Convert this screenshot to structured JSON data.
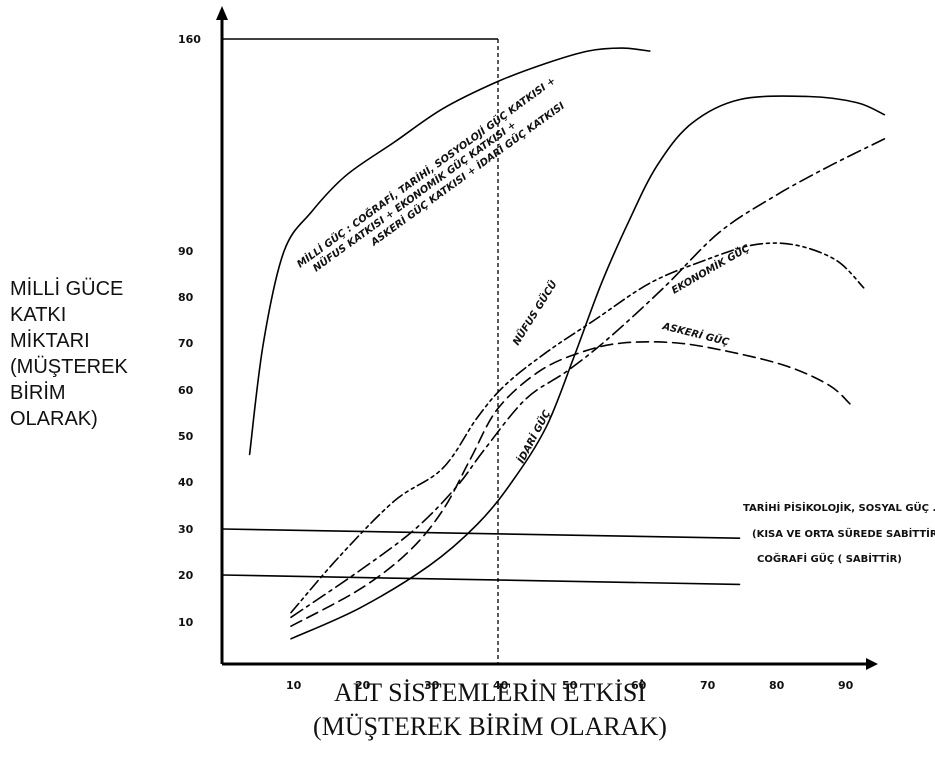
{
  "chart_data": {
    "type": "line",
    "ylabel_lines": [
      "MİLLİ GÜCE",
      "KATKI",
      "MİKTARI",
      "(MÜŞTEREK",
      "BİRİM",
      "OLARAK)"
    ],
    "xlabel_lines": [
      "ALT SİSTEMLERİN ETKİSİ",
      "(MÜŞTEREK BİRİM OLARAK)"
    ],
    "x_ticks": [
      10,
      20,
      30,
      40,
      50,
      60,
      70,
      80,
      90
    ],
    "y_ticks": [
      {
        "value": 10,
        "label": "10"
      },
      {
        "value": 20,
        "label": "20"
      },
      {
        "value": 30,
        "label": "30"
      },
      {
        "value": 40,
        "label": "40"
      },
      {
        "value": 50,
        "label": "50"
      },
      {
        "value": 60,
        "label": "60"
      },
      {
        "value": 70,
        "label": "70"
      },
      {
        "value": 80,
        "label": "80"
      },
      {
        "value": 90,
        "label": "90"
      },
      {
        "value": 160,
        "label": "160"
      }
    ],
    "reference_x": 40,
    "reference_y": 160,
    "series": [
      {
        "name": "MİLLİ GÜÇ",
        "label_lines": [
          "MİLLİ GÜÇ : COĞRAFİ, TARİHİ, SOSYOLOJİ GÜÇ KATKISI +",
          "NÜFUS KATKISI + EKONOMİK GÜÇ KATKISI +",
          "ASKERİ GÜÇ KATKISI + İDARİ GÜÇ KATKISI"
        ],
        "style": "solid",
        "points": [
          [
            4,
            46
          ],
          [
            6,
            70
          ],
          [
            9,
            90
          ],
          [
            13,
            103
          ],
          [
            18,
            115
          ],
          [
            25,
            126
          ],
          [
            32,
            137
          ],
          [
            40,
            146
          ],
          [
            47,
            152
          ],
          [
            53,
            156
          ],
          [
            58,
            157
          ],
          [
            62,
            156
          ]
        ]
      },
      {
        "name": "İDARİ GÜÇ",
        "style": "solid",
        "points": [
          [
            10,
            6
          ],
          [
            20,
            13
          ],
          [
            30,
            22
          ],
          [
            37,
            31
          ],
          [
            42,
            40
          ],
          [
            47,
            52
          ],
          [
            51,
            67
          ],
          [
            55,
            83
          ],
          [
            59,
            100
          ],
          [
            63,
            118
          ],
          [
            68,
            132
          ],
          [
            75,
            140
          ],
          [
            85,
            141
          ],
          [
            92,
            139
          ],
          [
            96,
            135
          ]
        ]
      },
      {
        "name": "NÜFUS GÜCÜ",
        "style": "dash-dot-dot",
        "points": [
          [
            10,
            12
          ],
          [
            17,
            24
          ],
          [
            25,
            36
          ],
          [
            32,
            43
          ],
          [
            37,
            54
          ],
          [
            41,
            61
          ],
          [
            47,
            68
          ],
          [
            54,
            75
          ],
          [
            62,
            83
          ],
          [
            70,
            88
          ],
          [
            77,
            92
          ],
          [
            83,
            92
          ],
          [
            89,
            88
          ],
          [
            93,
            82
          ]
        ]
      },
      {
        "name": "ASKERİ GÜÇ",
        "style": "dashed",
        "points": [
          [
            10,
            9
          ],
          [
            20,
            17
          ],
          [
            27,
            25
          ],
          [
            32,
            34
          ],
          [
            36,
            45
          ],
          [
            40,
            56
          ],
          [
            46,
            64
          ],
          [
            52,
            68
          ],
          [
            58,
            70
          ],
          [
            66,
            70
          ],
          [
            74,
            68
          ],
          [
            82,
            65
          ],
          [
            88,
            61
          ],
          [
            91,
            57
          ]
        ]
      },
      {
        "name": "EKONOMİK GÜÇ",
        "style": "dash-dot",
        "points": [
          [
            10,
            11
          ],
          [
            20,
            21
          ],
          [
            28,
            30
          ],
          [
            34,
            39
          ],
          [
            38,
            47
          ],
          [
            44,
            58
          ],
          [
            50,
            64
          ],
          [
            56,
            71
          ],
          [
            64,
            82
          ],
          [
            72,
            96
          ],
          [
            80,
            108
          ],
          [
            88,
            118
          ],
          [
            96,
            127
          ]
        ]
      },
      {
        "name": "TARİHİ PİSİKOLOJİK, SOSYAL GÜÇ .",
        "style": "solid",
        "points": [
          [
            0,
            30
          ],
          [
            75,
            28
          ]
        ]
      },
      {
        "name": "COĞRAFİ GÜÇ ( SABİTTİR)",
        "style": "solid",
        "points": [
          [
            0,
            20
          ],
          [
            75,
            18
          ]
        ]
      }
    ],
    "side_note": "(KISA VE ORTA SÜREDE SABİTTİR."
  }
}
